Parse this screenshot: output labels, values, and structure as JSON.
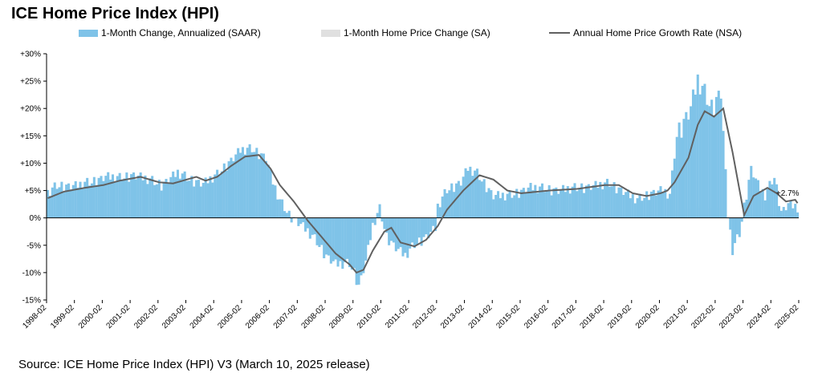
{
  "title": "ICE Home Price Index (HPI)",
  "source": "Source: ICE Home Price Index (HPI) V3 (March 10, 2025 release)",
  "chart_data": {
    "type": "bar",
    "title": "ICE Home Price Index (HPI)",
    "xlabel": "",
    "ylabel": "",
    "ylim": [
      -15,
      30
    ],
    "yticks": [
      30,
      25,
      20,
      15,
      10,
      5,
      0,
      -5,
      -10,
      -15
    ],
    "ytick_labels": [
      "+30%",
      "+25%",
      "+20%",
      "+15%",
      "+10%",
      "+5%",
      "0%",
      "-5%",
      "-10%",
      "-15%"
    ],
    "grid": false,
    "legend_position": "top",
    "x_ticks": [
      "1998-02",
      "1999-02",
      "2000-02",
      "2001-02",
      "2002-02",
      "2003-02",
      "2004-02",
      "2005-02",
      "2006-02",
      "2007-02",
      "2008-02",
      "2009-02",
      "2010-02",
      "2011-02",
      "2012-02",
      "2013-02",
      "2014-02",
      "2015-02",
      "2016-02",
      "2017-02",
      "2018-02",
      "2019-02",
      "2020-02",
      "2021-02",
      "2022-02",
      "2023-02",
      "2024-02",
      "2025-02"
    ],
    "start_month": "1998-02",
    "end_month": "2025-01",
    "annotation": "+2.7%",
    "series": [
      {
        "name": "1-Month Change, Annualized (SAAR)",
        "kind": "bar",
        "color": "#7fc3e8",
        "anchors": [
          [
            "1998-02",
            4.5
          ],
          [
            "1998-06",
            5.8
          ],
          [
            "1999-02",
            5.8
          ],
          [
            "1999-09",
            6.5
          ],
          [
            "2000-03",
            7.5
          ],
          [
            "2000-09",
            7.2
          ],
          [
            "2001-03",
            7.8
          ],
          [
            "2001-09",
            7.0
          ],
          [
            "2002-03",
            6.0
          ],
          [
            "2002-10",
            8.2
          ],
          [
            "2003-03",
            7.0
          ],
          [
            "2003-09",
            6.2
          ],
          [
            "2004-03",
            7.8
          ],
          [
            "2004-09",
            10.5
          ],
          [
            "2005-01",
            12.3
          ],
          [
            "2005-06",
            12.5
          ],
          [
            "2005-12",
            11.0
          ],
          [
            "2006-03",
            6.5
          ],
          [
            "2006-06",
            3.0
          ],
          [
            "2006-10",
            0.5
          ],
          [
            "2007-01",
            -0.5
          ],
          [
            "2007-06",
            -2.5
          ],
          [
            "2007-10",
            -4.5
          ],
          [
            "2008-02",
            -7.0
          ],
          [
            "2008-06",
            -8.5
          ],
          [
            "2008-12",
            -8.5
          ],
          [
            "2009-02",
            -10.0
          ],
          [
            "2009-04",
            -12.5
          ],
          [
            "2009-07",
            -8.0
          ],
          [
            "2009-10",
            -1.5
          ],
          [
            "2010-01",
            1.5
          ],
          [
            "2010-04",
            -3.5
          ],
          [
            "2010-08",
            -5.5
          ],
          [
            "2010-12",
            -7.0
          ],
          [
            "2011-04",
            -5.0
          ],
          [
            "2011-09",
            -3.5
          ],
          [
            "2012-01",
            -2.0
          ],
          [
            "2012-02",
            2.0
          ],
          [
            "2012-06",
            5.0
          ],
          [
            "2012-12",
            6.5
          ],
          [
            "2013-03",
            9.0
          ],
          [
            "2013-07",
            8.0
          ],
          [
            "2014-02",
            4.0
          ],
          [
            "2014-09",
            4.0
          ],
          [
            "2015-06",
            5.5
          ],
          [
            "2016-06",
            5.0
          ],
          [
            "2017-06",
            5.6
          ],
          [
            "2018-04",
            6.2
          ],
          [
            "2018-10",
            4.8
          ],
          [
            "2019-04",
            3.2
          ],
          [
            "2019-10",
            4.5
          ],
          [
            "2020-03",
            5.0
          ],
          [
            "2020-06",
            4.0
          ],
          [
            "2020-09",
            15.0
          ],
          [
            "2021-03",
            20.0
          ],
          [
            "2021-06",
            25.0
          ],
          [
            "2021-12",
            20.0
          ],
          [
            "2022-04",
            23.0
          ],
          [
            "2022-07",
            0.5
          ],
          [
            "2022-09",
            -6.0
          ],
          [
            "2022-12",
            -3.0
          ],
          [
            "2023-02",
            2.0
          ],
          [
            "2023-05",
            9.0
          ],
          [
            "2023-08",
            6.0
          ],
          [
            "2023-11",
            4.0
          ],
          [
            "2024-03",
            7.5
          ],
          [
            "2024-06",
            1.0
          ],
          [
            "2024-09",
            2.5
          ],
          [
            "2025-01",
            1.8
          ]
        ]
      },
      {
        "name": "1-Month Home Price Change (SA)",
        "kind": "bar",
        "color": "#e0e0e0",
        "note": "monthly SA change (1-month SAAR compounded back to a single month)"
      },
      {
        "name": "Annual Home Price Growth Rate (NSA)",
        "kind": "line",
        "color": "#606060",
        "anchors": [
          [
            "1998-02",
            3.6
          ],
          [
            "1998-09",
            4.8
          ],
          [
            "1999-06",
            5.5
          ],
          [
            "2000-02",
            6.0
          ],
          [
            "2000-09",
            6.8
          ],
          [
            "2001-06",
            7.5
          ],
          [
            "2002-02",
            6.5
          ],
          [
            "2002-08",
            6.3
          ],
          [
            "2003-06",
            7.5
          ],
          [
            "2003-10",
            6.8
          ],
          [
            "2004-03",
            7.5
          ],
          [
            "2004-09",
            9.5
          ],
          [
            "2005-03",
            11.2
          ],
          [
            "2005-09",
            11.5
          ],
          [
            "2006-02",
            9.0
          ],
          [
            "2006-06",
            6.0
          ],
          [
            "2006-12",
            3.0
          ],
          [
            "2007-06",
            -0.5
          ],
          [
            "2007-12",
            -3.5
          ],
          [
            "2008-06",
            -6.5
          ],
          [
            "2008-12",
            -8.5
          ],
          [
            "2009-03",
            -10.0
          ],
          [
            "2009-06",
            -9.5
          ],
          [
            "2009-10",
            -6.0
          ],
          [
            "2010-03",
            -2.5
          ],
          [
            "2010-06",
            -1.8
          ],
          [
            "2010-10",
            -4.5
          ],
          [
            "2011-04",
            -5.2
          ],
          [
            "2011-09",
            -4.0
          ],
          [
            "2012-02",
            -1.5
          ],
          [
            "2012-06",
            1.5
          ],
          [
            "2013-01",
            5.0
          ],
          [
            "2013-08",
            7.8
          ],
          [
            "2014-02",
            7.0
          ],
          [
            "2014-08",
            5.0
          ],
          [
            "2015-02",
            4.5
          ],
          [
            "2016-02",
            5.0
          ],
          [
            "2017-02",
            5.3
          ],
          [
            "2018-02",
            6.0
          ],
          [
            "2018-08",
            6.0
          ],
          [
            "2019-02",
            4.5
          ],
          [
            "2019-08",
            4.0
          ],
          [
            "2020-02",
            4.5
          ],
          [
            "2020-05",
            5.0
          ],
          [
            "2020-08",
            6.5
          ],
          [
            "2021-02",
            11.0
          ],
          [
            "2021-06",
            17.0
          ],
          [
            "2021-09",
            19.5
          ],
          [
            "2022-01",
            18.5
          ],
          [
            "2022-05",
            20.0
          ],
          [
            "2022-09",
            12.0
          ],
          [
            "2023-02",
            0.5
          ],
          [
            "2023-06",
            4.0
          ],
          [
            "2023-12",
            5.5
          ],
          [
            "2024-04",
            4.5
          ],
          [
            "2024-08",
            3.0
          ],
          [
            "2024-12",
            3.3
          ],
          [
            "2025-01",
            2.7
          ]
        ]
      }
    ]
  }
}
